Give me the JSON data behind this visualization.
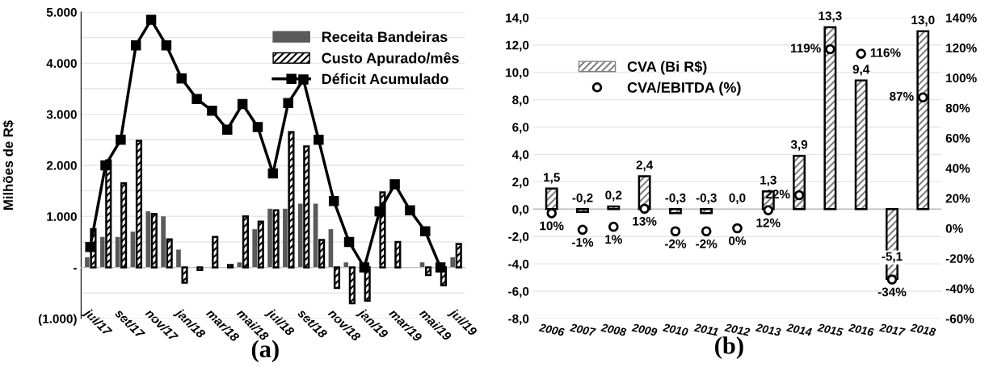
{
  "chart_data": [
    {
      "type": "bar",
      "ylabel": "Milhões de R$",
      "annotations": [
        "(a)"
      ],
      "categories": [
        "jul/17",
        null,
        "set/17",
        null,
        "nov/17",
        null,
        "jan/18",
        null,
        "mar/18",
        null,
        "mai/18",
        null,
        "jul/18",
        null,
        "set/18",
        null,
        "nov/18",
        null,
        "jan/19",
        null,
        "mar/19",
        null,
        "mai/19",
        null,
        "jul/19"
      ],
      "series": [
        {
          "name": "Receita Bandeiras",
          "color": "#595959",
          "values": [
            200,
            600,
            600,
            700,
            1100,
            1000,
            350,
            0,
            0,
            0,
            100,
            750,
            1150,
            1150,
            1250,
            1250,
            750,
            100,
            0,
            0,
            0,
            0,
            100,
            0,
            200
          ]
        },
        {
          "name": "Custo Apurado/mês",
          "color": "#ffffff",
          "values": [
            750,
            2100,
            1650,
            2480,
            1050,
            550,
            -300,
            -50,
            600,
            50,
            1000,
            900,
            1120,
            2650,
            2370,
            540,
            -400,
            -700,
            -650,
            1470,
            500,
            0,
            -150,
            -350,
            460
          ]
        },
        {
          "name": "Déficit Acumulado",
          "type": "line",
          "color": "#000000",
          "marker": "square",
          "line_style": "solid",
          "values": [
            400,
            2000,
            2500,
            4350,
            4850,
            4350,
            3700,
            3300,
            3070,
            2700,
            3200,
            2750,
            1840,
            3220,
            3680,
            2500,
            1300,
            500,
            0,
            1100,
            1630,
            1120,
            710,
            0,
            null
          ]
        }
      ],
      "ylim": [
        -1000,
        5000
      ],
      "yticks": [
        {
          "value": -1000,
          "label": "(1.000)"
        },
        {
          "value": -500,
          "label": null
        },
        {
          "value": 0,
          "label": "-"
        },
        {
          "value": 500,
          "label": null
        },
        {
          "value": 1000,
          "label": "1.000"
        },
        {
          "value": 1500,
          "label": null
        },
        {
          "value": 2000,
          "label": "2.000"
        },
        {
          "value": 2500,
          "label": null
        },
        {
          "value": 3000,
          "label": "3.000"
        },
        {
          "value": 3500,
          "label": null
        },
        {
          "value": 4000,
          "label": "4.000"
        },
        {
          "value": 4500,
          "label": null
        },
        {
          "value": 5000,
          "label": "5.000"
        }
      ],
      "grid": "y",
      "legend": "top right"
    },
    {
      "type": "bar",
      "annotations": [
        "(b)"
      ],
      "categories": [
        "2006",
        "2007",
        "2008",
        "2009",
        "2010",
        "2011",
        "2012",
        "2013",
        "2014",
        "2015",
        "2016",
        "2017",
        "2018"
      ],
      "series": [
        {
          "name": "CVA (Bi R$)",
          "color": "#808080",
          "values": [
            1.5,
            -0.2,
            0.2,
            2.4,
            -0.3,
            -0.3,
            0.0,
            1.3,
            3.9,
            13.3,
            9.4,
            -5.1,
            13.0
          ],
          "value_labels": [
            "1,5",
            "-0,2",
            "0,2",
            "2,4",
            "-0,3",
            "-0,3",
            "0,0",
            "1,3",
            "3,9",
            "13,3",
            "9,4",
            "-5,1",
            "13,0"
          ]
        },
        {
          "name": "CVA/EBITDA (%)",
          "type": "scatter",
          "axis": "y2",
          "color": "#000000",
          "marker": "circle",
          "values": [
            10,
            -1,
            1,
            13,
            -2,
            -2,
            0,
            12,
            22,
            119,
            116,
            -34,
            87
          ],
          "value_labels": [
            "10%",
            "-1%",
            "1%",
            "13%",
            "-2%",
            "-2%",
            "0%",
            "12%",
            "22%",
            "119%",
            "116%",
            "-34%",
            "87%"
          ]
        }
      ],
      "ylim": [
        -8,
        14
      ],
      "yticks": [
        {
          "value": -8,
          "label": "-8,0"
        },
        {
          "value": -6,
          "label": "-6,0"
        },
        {
          "value": -4,
          "label": "-4,0"
        },
        {
          "value": -2,
          "label": "-2,0"
        },
        {
          "value": 0,
          "label": "0,0"
        },
        {
          "value": 2,
          "label": "2,0"
        },
        {
          "value": 4,
          "label": "4,0"
        },
        {
          "value": 6,
          "label": "6,0"
        },
        {
          "value": 8,
          "label": "8,0"
        },
        {
          "value": 10,
          "label": "10,0"
        },
        {
          "value": 12,
          "label": "12,0"
        },
        {
          "value": 14,
          "label": "14,0"
        }
      ],
      "y2lim": [
        -60,
        140
      ],
      "y2ticks": [
        {
          "value": -60,
          "label": "-60%"
        },
        {
          "value": -40,
          "label": "-40%"
        },
        {
          "value": -20,
          "label": "-20%"
        },
        {
          "value": 0,
          "label": "0%"
        },
        {
          "value": 20,
          "label": "20%"
        },
        {
          "value": 40,
          "label": "40%"
        },
        {
          "value": 60,
          "label": "60%"
        },
        {
          "value": 80,
          "label": "80%"
        },
        {
          "value": 100,
          "label": "100%"
        },
        {
          "value": 120,
          "label": "120%"
        },
        {
          "value": 140,
          "label": "140%"
        }
      ],
      "grid": "y",
      "legend": "top left"
    }
  ]
}
